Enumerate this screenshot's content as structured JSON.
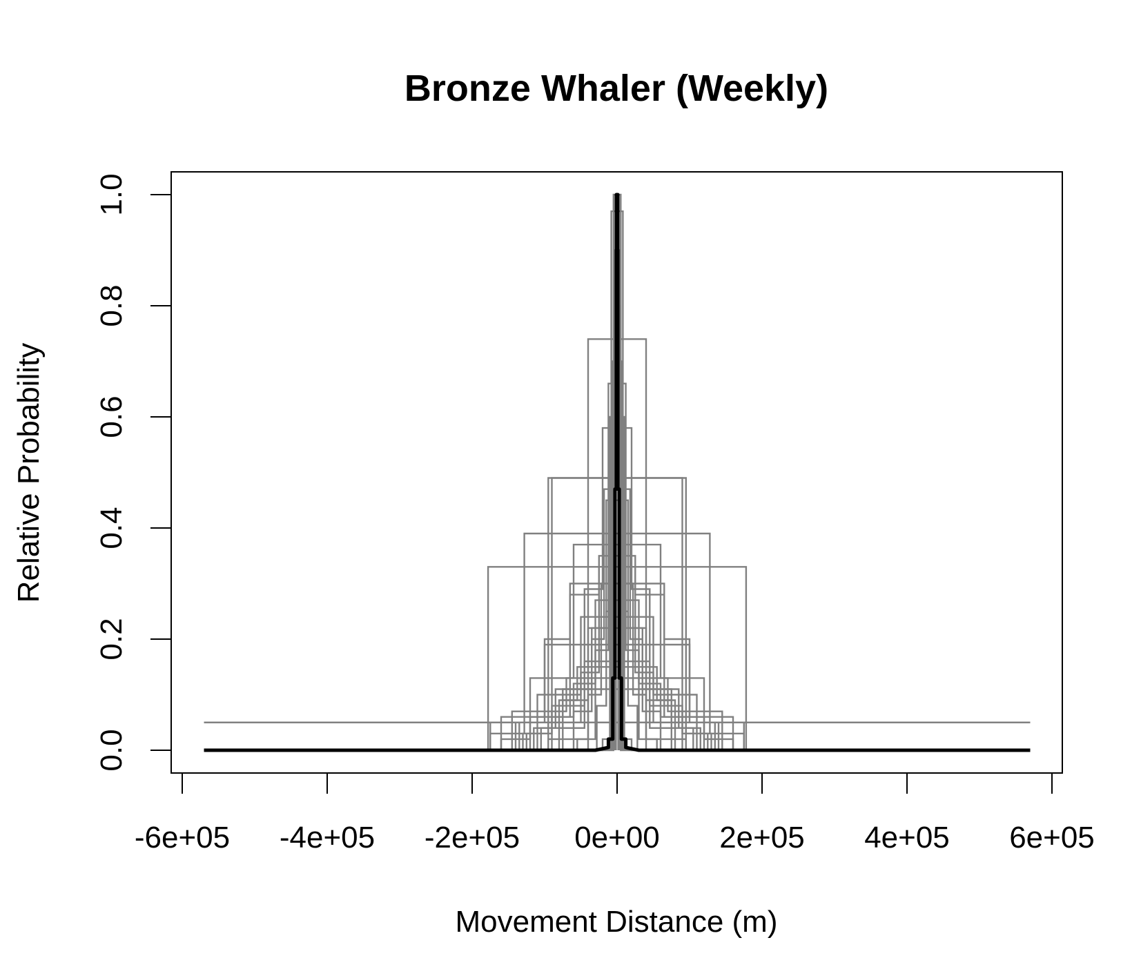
{
  "chart_data": {
    "type": "line",
    "title": "Bronze Whaler (Weekly)",
    "xlabel": "Movement Distance (m)",
    "ylabel": "Relative Probability",
    "xlim": [
      -600000,
      600000
    ],
    "ylim": [
      0,
      1.0
    ],
    "x_ticks": [
      -600000,
      -400000,
      -200000,
      0,
      200000,
      400000,
      600000
    ],
    "x_tick_labels": [
      "-6e+05",
      "-4e+05",
      "-2e+05",
      "0e+00",
      "2e+05",
      "4e+05",
      "6e+05"
    ],
    "y_ticks": [
      0,
      0.2,
      0.4,
      0.6,
      0.8,
      1.0
    ],
    "y_tick_labels": [
      "0.0",
      "0.2",
      "0.4",
      "0.6",
      "0.8",
      "1.0"
    ],
    "grid": false,
    "legend": "none",
    "colors": {
      "replicates": "#808080",
      "mean": "#000000"
    },
    "step_series_halfwidths": [
      {
        "w": [
          5000,
          12000
        ],
        "h": [
          1.0,
          0.0
        ]
      },
      {
        "w": [
          8000,
          20000
        ],
        "h": [
          0.97,
          0.02
        ]
      },
      {
        "w": [
          12000,
          30000,
          55000
        ],
        "h": [
          0.66,
          0.18,
          0.02
        ]
      },
      {
        "w": [
          40000,
          95000
        ],
        "h": [
          0.74,
          0.02
        ]
      },
      {
        "w": [
          20000,
          45000,
          80000
        ],
        "h": [
          0.58,
          0.29,
          0.04
        ]
      },
      {
        "w": [
          95000,
          130000
        ],
        "h": [
          0.49,
          0.03
        ]
      },
      {
        "w": [
          90000,
          175000
        ],
        "h": [
          0.49,
          0.05
        ]
      },
      {
        "w": [
          128000,
          175000
        ],
        "h": [
          0.39,
          0.03
        ]
      },
      {
        "w": [
          178000
        ],
        "h": [
          0.33
        ]
      },
      {
        "w": [
          60000,
          120000,
          160000
        ],
        "h": [
          0.37,
          0.13,
          0.02
        ]
      },
      {
        "w": [
          25000,
          65000,
          100000,
          140000
        ],
        "h": [
          0.33,
          0.28,
          0.2,
          0.05
        ]
      },
      {
        "w": [
          50000,
          110000
        ],
        "h": [
          0.24,
          0.1
        ]
      },
      {
        "w": [
          70000,
          145000
        ],
        "h": [
          0.13,
          0.07
        ]
      },
      {
        "w": [
          35000,
          85000,
          115000
        ],
        "h": [
          0.22,
          0.11,
          0.04
        ]
      },
      {
        "w": [
          15000,
          40000,
          75000
        ],
        "h": [
          0.45,
          0.22,
          0.09
        ]
      },
      {
        "w": [
          100000,
          160000
        ],
        "h": [
          0.19,
          0.06
        ]
      },
      {
        "w": [
          30000,
          60000,
          95000
        ],
        "h": [
          0.27,
          0.12,
          0.06
        ]
      },
      {
        "w": [
          45000,
          90000,
          125000
        ],
        "h": [
          0.16,
          0.08,
          0.03
        ]
      },
      {
        "w": [
          10000,
          22000,
          40000
        ],
        "h": [
          0.6,
          0.3,
          0.1
        ]
      },
      {
        "w": [
          55000,
          80000,
          105000
        ],
        "h": [
          0.15,
          0.09,
          0.04
        ]
      },
      {
        "w": [
          6000,
          15000,
          28000
        ],
        "h": [
          0.55,
          0.25,
          0.08
        ]
      },
      {
        "w": [
          75000,
          135000
        ],
        "h": [
          0.11,
          0.05
        ]
      },
      {
        "w": [
          18000,
          35000,
          60000
        ],
        "h": [
          0.47,
          0.2,
          0.07
        ]
      },
      {
        "w": [
          65000,
          120000
        ],
        "h": [
          0.3,
          0.06
        ]
      },
      {
        "w": [
          25000,
          50000,
          90000
        ],
        "h": [
          0.35,
          0.14,
          0.05
        ]
      }
    ],
    "flat_line": {
      "x": [
        -570000,
        570000
      ],
      "y": 0.05
    },
    "mean_curve": {
      "x": [
        -570000,
        -30000,
        -12000,
        -12000,
        -6000,
        -6000,
        -3000,
        -3000,
        -1000,
        -1000,
        1000,
        1000,
        3000,
        3000,
        6000,
        6000,
        12000,
        12000,
        30000,
        570000
      ],
      "y": [
        0,
        0,
        0.005,
        0.02,
        0.02,
        0.13,
        0.13,
        0.47,
        0.47,
        1.0,
        1.0,
        0.47,
        0.47,
        0.13,
        0.13,
        0.02,
        0.02,
        0.005,
        0,
        0
      ]
    }
  }
}
